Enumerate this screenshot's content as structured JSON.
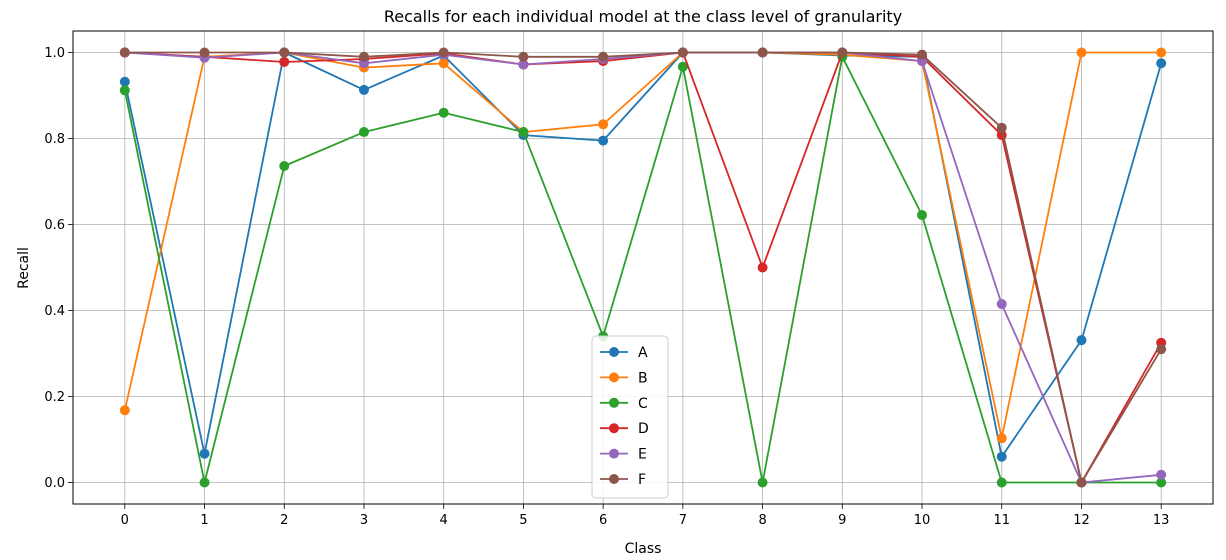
{
  "chart_data": {
    "type": "line",
    "title": "Recalls for each individual model at the class level of granularity",
    "xlabel": "Class",
    "ylabel": "Recall",
    "x": [
      0,
      1,
      2,
      3,
      4,
      5,
      6,
      7,
      8,
      9,
      10,
      11,
      12,
      13
    ],
    "xlim": [
      -0.65,
      13.65
    ],
    "ylim": [
      -0.05,
      1.05
    ],
    "yticks": [
      0.0,
      0.2,
      0.4,
      0.6,
      0.8,
      1.0
    ],
    "ytick_labels": [
      "0.0",
      "0.2",
      "0.4",
      "0.6",
      "0.8",
      "1.0"
    ],
    "xtick_labels": [
      "0",
      "1",
      "2",
      "3",
      "4",
      "5",
      "6",
      "7",
      "8",
      "9",
      "10",
      "11",
      "12",
      "13"
    ],
    "grid": true,
    "legend_position": "lower-center",
    "series": [
      {
        "name": "A",
        "color": "#1f77b4",
        "values": [
          0.932,
          0.067,
          1.0,
          0.913,
          0.993,
          0.808,
          0.795,
          1.0,
          1.0,
          0.993,
          0.99,
          0.06,
          0.331,
          0.975
        ]
      },
      {
        "name": "B",
        "color": "#ff7f0e",
        "values": [
          0.168,
          0.99,
          1.0,
          0.965,
          0.975,
          0.815,
          0.833,
          1.0,
          1.0,
          0.995,
          0.98,
          0.103,
          1.0,
          1.0
        ]
      },
      {
        "name": "C",
        "color": "#2ca02c",
        "values": [
          0.912,
          0.0,
          0.736,
          0.815,
          0.86,
          0.815,
          0.34,
          0.967,
          0.0,
          0.99,
          0.622,
          0.0,
          0.0,
          0.0
        ]
      },
      {
        "name": "D",
        "color": "#d62728",
        "values": [
          1.0,
          0.99,
          0.978,
          0.985,
          0.998,
          0.972,
          0.98,
          1.0,
          0.5,
          1.0,
          0.99,
          0.808,
          0.0,
          0.325
        ]
      },
      {
        "name": "E",
        "color": "#9467bd",
        "values": [
          1.0,
          0.988,
          1.0,
          0.975,
          0.995,
          0.972,
          0.985,
          1.0,
          1.0,
          1.0,
          0.98,
          0.415,
          0.0,
          0.018
        ]
      },
      {
        "name": "F",
        "color": "#8c564b",
        "values": [
          1.0,
          1.0,
          1.0,
          0.99,
          1.0,
          0.99,
          0.99,
          1.0,
          1.0,
          1.0,
          0.995,
          0.825,
          0.0,
          0.31
        ]
      }
    ]
  }
}
